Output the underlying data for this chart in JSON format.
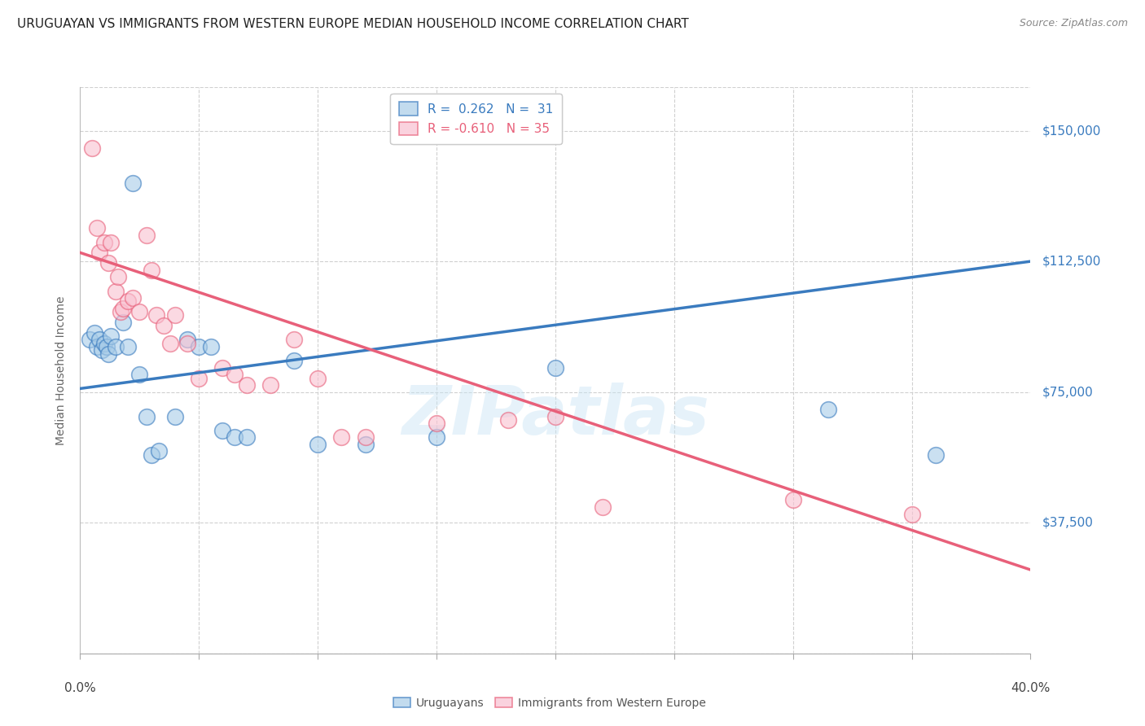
{
  "title": "URUGUAYAN VS IMMIGRANTS FROM WESTERN EUROPE MEDIAN HOUSEHOLD INCOME CORRELATION CHART",
  "source": "Source: ZipAtlas.com",
  "ylabel": "Median Household Income",
  "yticks": [
    37500,
    75000,
    112500,
    150000
  ],
  "ytick_labels": [
    "$37,500",
    "$75,000",
    "$112,500",
    "$150,000"
  ],
  "xlim": [
    0.0,
    0.4
  ],
  "ylim": [
    0,
    162500
  ],
  "watermark": "ZIPatlas",
  "legend_r1": "R =  0.262   N =  31",
  "legend_r2": "R = -0.610   N = 35",
  "blue_color": "#a8cce8",
  "pink_color": "#f9c0d0",
  "blue_line_color": "#3a7bbf",
  "pink_line_color": "#e8607a",
  "blue_scatter": [
    [
      0.004,
      90000
    ],
    [
      0.006,
      92000
    ],
    [
      0.007,
      88000
    ],
    [
      0.008,
      90000
    ],
    [
      0.009,
      87000
    ],
    [
      0.01,
      89000
    ],
    [
      0.011,
      88000
    ],
    [
      0.012,
      86000
    ],
    [
      0.013,
      91000
    ],
    [
      0.015,
      88000
    ],
    [
      0.018,
      95000
    ],
    [
      0.02,
      88000
    ],
    [
      0.022,
      135000
    ],
    [
      0.025,
      80000
    ],
    [
      0.028,
      68000
    ],
    [
      0.03,
      57000
    ],
    [
      0.033,
      58000
    ],
    [
      0.04,
      68000
    ],
    [
      0.045,
      90000
    ],
    [
      0.05,
      88000
    ],
    [
      0.055,
      88000
    ],
    [
      0.06,
      64000
    ],
    [
      0.065,
      62000
    ],
    [
      0.07,
      62000
    ],
    [
      0.09,
      84000
    ],
    [
      0.1,
      60000
    ],
    [
      0.12,
      60000
    ],
    [
      0.15,
      62000
    ],
    [
      0.2,
      82000
    ],
    [
      0.315,
      70000
    ],
    [
      0.36,
      57000
    ]
  ],
  "pink_scatter": [
    [
      0.005,
      145000
    ],
    [
      0.007,
      122000
    ],
    [
      0.008,
      115000
    ],
    [
      0.01,
      118000
    ],
    [
      0.012,
      112000
    ],
    [
      0.013,
      118000
    ],
    [
      0.015,
      104000
    ],
    [
      0.016,
      108000
    ],
    [
      0.017,
      98000
    ],
    [
      0.018,
      99000
    ],
    [
      0.02,
      101000
    ],
    [
      0.022,
      102000
    ],
    [
      0.025,
      98000
    ],
    [
      0.028,
      120000
    ],
    [
      0.03,
      110000
    ],
    [
      0.032,
      97000
    ],
    [
      0.035,
      94000
    ],
    [
      0.038,
      89000
    ],
    [
      0.04,
      97000
    ],
    [
      0.045,
      89000
    ],
    [
      0.05,
      79000
    ],
    [
      0.06,
      82000
    ],
    [
      0.065,
      80000
    ],
    [
      0.07,
      77000
    ],
    [
      0.08,
      77000
    ],
    [
      0.09,
      90000
    ],
    [
      0.1,
      79000
    ],
    [
      0.11,
      62000
    ],
    [
      0.12,
      62000
    ],
    [
      0.15,
      66000
    ],
    [
      0.18,
      67000
    ],
    [
      0.2,
      68000
    ],
    [
      0.22,
      42000
    ],
    [
      0.3,
      44000
    ],
    [
      0.35,
      40000
    ]
  ],
  "blue_line_x": [
    0.0,
    0.4
  ],
  "blue_line_y": [
    76000,
    112500
  ],
  "pink_line_x": [
    0.0,
    0.4
  ],
  "pink_line_y": [
    115000,
    24000
  ],
  "background_color": "#ffffff",
  "grid_color": "#d0d0d0",
  "title_fontsize": 11,
  "axis_label_fontsize": 10,
  "tick_fontsize": 11,
  "watermark_fontsize": 60,
  "watermark_color": "#c8e4f5",
  "watermark_alpha": 0.45
}
